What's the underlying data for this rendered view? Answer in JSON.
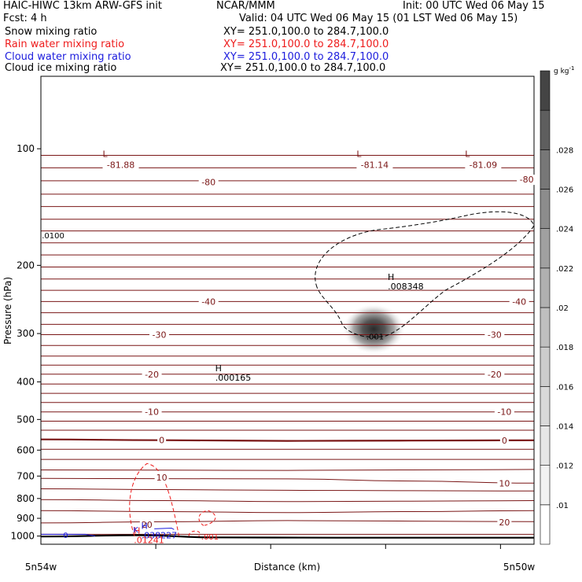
{
  "header": {
    "line1_left": "HAIC-HIWC 13km ARW-GFS init",
    "line1_center": "NCAR/MMM",
    "line1_right": "Init: 00 UTC Wed 06 May 15",
    "line2_left": "Fcst:     4 h",
    "line2_right": "Valid: 04 UTC Wed 06 May 15 (01 LST Wed 06 May 15)",
    "fields": [
      {
        "name": "Snow mixing ratio",
        "xy": "XY= 251.0,100.0 to 284.7,100.0",
        "color": "#000000"
      },
      {
        "name": "Rain water mixing ratio",
        "xy": "XY= 251.0,100.0 to 284.7,100.0",
        "color": "#ee1c1c"
      },
      {
        "name": "Cloud water mixing ratio",
        "xy": "XY= 251.0,100.0 to 284.7,100.0",
        "color": "#1c1cdd"
      },
      {
        "name": "Cloud ice mixing ratio",
        "xy": "XY= 251.0,100.0 to 284.7,100.0",
        "color": "#000000"
      }
    ]
  },
  "chart_data": {
    "type": "cross-section",
    "ylabel": "Pressure (hPa)",
    "xlabel": "Distance (km)",
    "x_left_label": "5n54w",
    "x_right_label": "5n50w",
    "y_scale": "log",
    "y_ticks": [
      100,
      200,
      300,
      400,
      500,
      600,
      700,
      800,
      900,
      1000
    ],
    "ylim": [
      1050,
      65
    ],
    "xlim": [
      0,
      1
    ],
    "colorbar": {
      "unit": "g kg",
      "unit_exp": "-1",
      "ticks": [
        ".01",
        ".012",
        ".014",
        ".016",
        ".018",
        ".02",
        ".022",
        ".024",
        ".026",
        ".028"
      ],
      "colors": [
        "#ffffff",
        "#f2f2f2",
        "#e6e6e6",
        "#d9d9d9",
        "#cccccc",
        "#bfbfbf",
        "#b0b0b0",
        "#a0a0a0",
        "#8c8c8c",
        "#777777",
        "#5e5e5e",
        "#444444"
      ]
    },
    "temperature_labels": [
      {
        "text": "-80",
        "x": 0.34,
        "p": 122
      },
      {
        "text": "-80",
        "x": 0.985,
        "p": 120
      },
      {
        "text": "-40",
        "x": 0.34,
        "p": 248
      },
      {
        "text": "-40",
        "x": 0.97,
        "p": 248
      },
      {
        "text": "-30",
        "x": 0.24,
        "p": 302
      },
      {
        "text": "-30",
        "x": 0.92,
        "p": 302
      },
      {
        "text": "-20",
        "x": 0.225,
        "p": 382
      },
      {
        "text": "-20",
        "x": 0.92,
        "p": 382
      },
      {
        "text": "-10",
        "x": 0.225,
        "p": 478
      },
      {
        "text": "-10",
        "x": 0.94,
        "p": 478
      },
      {
        "text": "0",
        "x": 0.245,
        "p": 565
      },
      {
        "text": "0",
        "x": 0.94,
        "p": 566
      },
      {
        "text": "10",
        "x": 0.245,
        "p": 705
      },
      {
        "text": "10",
        "x": 0.94,
        "p": 730
      },
      {
        "text": "20",
        "x": 0.215,
        "p": 935
      },
      {
        "text": "20",
        "x": 0.94,
        "p": 922
      }
    ],
    "lows": [
      {
        "text": "L",
        "value": "-81.88",
        "x": 0.13,
        "p": 103
      },
      {
        "text": "L",
        "value": "-81.14",
        "x": 0.645,
        "p": 103
      },
      {
        "text": "L",
        "value": "-81.09",
        "x": 0.865,
        "p": 103
      }
    ],
    "highs": [
      {
        "text": "H",
        "value": ".008348",
        "x": 0.71,
        "p": 218,
        "color": "#000000"
      },
      {
        "text": "H",
        "value": ".000165",
        "x": 0.36,
        "p": 375,
        "color": "#000000"
      },
      {
        "text": "H",
        "value": ".038227",
        "x": 0.21,
        "p": 958,
        "color": "#1c1cdd"
      },
      {
        "text": "H",
        "value": ".01241",
        "x": 0.195,
        "p": 985,
        "color": "#ee1c1c"
      }
    ],
    "contour_labels": [
      {
        "text": ".0100",
        "x": 0.002,
        "p": 167,
        "color": "#000000"
      },
      {
        "text": ".001",
        "x": 0.66,
        "p": 305,
        "color": "#000000"
      },
      {
        "text": "K",
        "x": 0.187,
        "p": 960,
        "color": "#1c1cdd"
      },
      {
        "text": ".001",
        "x": 0.325,
        "p": 1002,
        "color": "#ee1c1c"
      },
      {
        "text": "0",
        "x": 0.045,
        "p": 992,
        "color": "#1c1cdd"
      }
    ]
  }
}
